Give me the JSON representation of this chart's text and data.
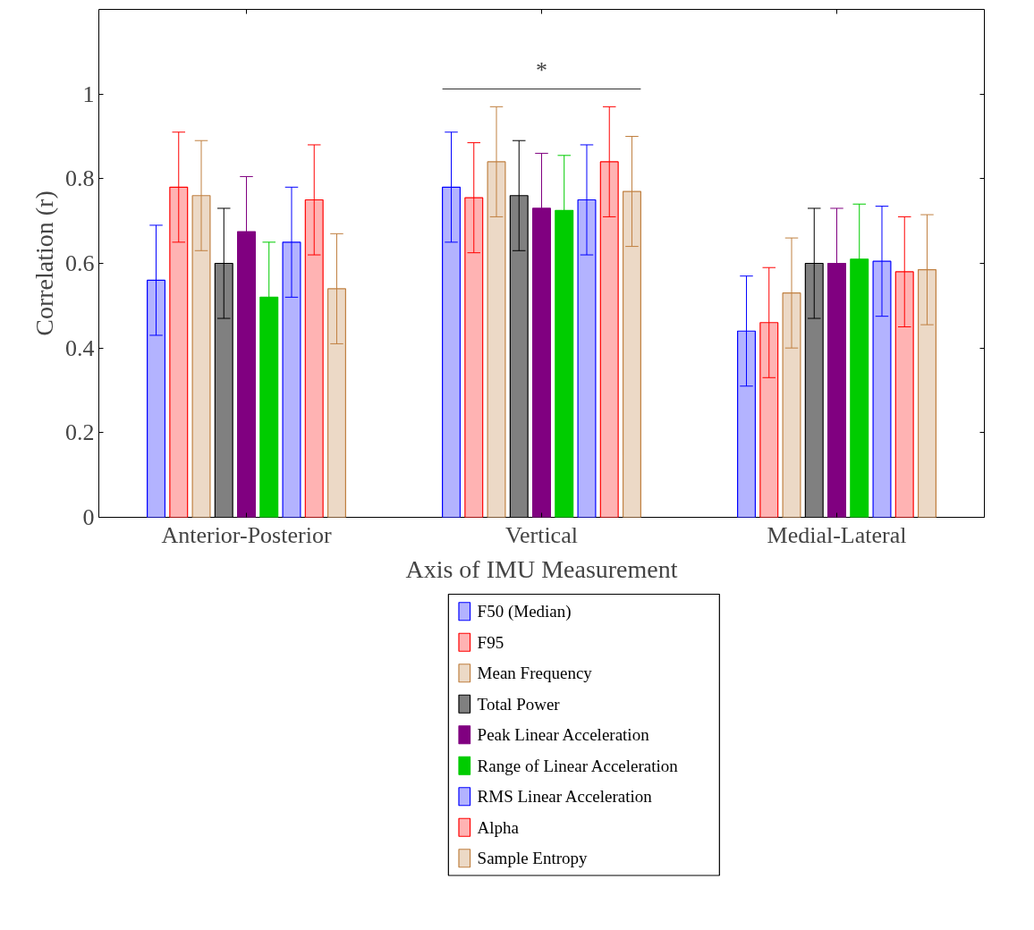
{
  "chart_data": {
    "type": "bar",
    "xlabel": "Axis of IMU Measurement",
    "ylabel": "Correlation (r)",
    "categories": [
      "Anterior-Posterior",
      "Vertical",
      "Medial-Lateral"
    ],
    "ylim": [
      0,
      1.2
    ],
    "yticks": [
      0,
      0.2,
      0.4,
      0.6,
      0.8,
      1
    ],
    "series": [
      {
        "name": "F50 (Median)",
        "color": "#b3b3ff",
        "values": [
          0.56,
          0.78,
          0.44
        ],
        "errors": [
          0.13,
          0.13,
          0.13
        ]
      },
      {
        "name": "F95",
        "color": "#ffb3b3",
        "values": [
          0.78,
          0.755,
          0.46
        ],
        "errors": [
          0.13,
          0.13,
          0.13
        ]
      },
      {
        "name": "Mean Frequency",
        "color": "#ecd9c6",
        "values": [
          0.76,
          0.84,
          0.53
        ],
        "errors": [
          0.13,
          0.13,
          0.13
        ]
      },
      {
        "name": "Total Power",
        "color": "#808080",
        "values": [
          0.6,
          0.76,
          0.6
        ],
        "errors": [
          0.13,
          0.13,
          0.13
        ]
      },
      {
        "name": "Peak Linear Acceleration",
        "color": "#800080",
        "values": [
          0.675,
          0.73,
          0.6
        ],
        "errors": [
          0.13,
          0.13,
          0.13
        ]
      },
      {
        "name": "Range of Linear Acceleration",
        "color": "#00cc00",
        "values": [
          0.52,
          0.725,
          0.61
        ],
        "errors": [
          0.13,
          0.13,
          0.13
        ]
      },
      {
        "name": "RMS Linear Acceleration",
        "color": "#b3b3ff",
        "values": [
          0.65,
          0.75,
          0.605
        ],
        "errors": [
          0.13,
          0.13,
          0.13
        ]
      },
      {
        "name": "Alpha",
        "color": "#ffb3b3",
        "values": [
          0.75,
          0.84,
          0.58
        ],
        "errors": [
          0.13,
          0.13,
          0.13
        ]
      },
      {
        "name": "Sample Entropy",
        "color": "#ecd9c6",
        "values": [
          0.54,
          0.77,
          0.585
        ],
        "errors": [
          0.13,
          0.13,
          0.13
        ]
      }
    ],
    "annotations": [
      "*"
    ],
    "grid": false,
    "legend": "bottom"
  }
}
